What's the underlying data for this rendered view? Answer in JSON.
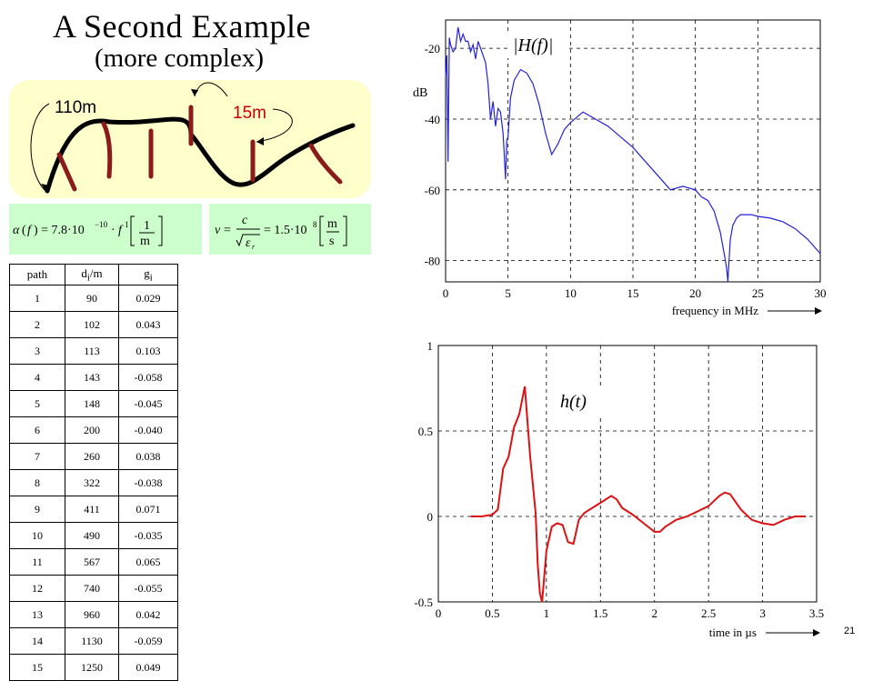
{
  "slide": {
    "title": "A Second Example",
    "subtitle": "(more complex)",
    "page_number": "21"
  },
  "topology": {
    "label_main": "110m",
    "label_branch": "15m"
  },
  "formulas": {
    "attenuation": "α(f) = 7.8·10⁻¹⁰ · f¹ [1/m]",
    "velocity": "v = c/√εr = 1.5·10⁸ [m/s]"
  },
  "table": {
    "headers": [
      "path",
      "d_i/m",
      "g_i"
    ],
    "rows": [
      [
        "1",
        "90",
        "0.029"
      ],
      [
        "2",
        "102",
        "0.043"
      ],
      [
        "3",
        "113",
        "0.103"
      ],
      [
        "4",
        "143",
        "-0.058"
      ],
      [
        "5",
        "148",
        "-0.045"
      ],
      [
        "6",
        "200",
        "-0.040"
      ],
      [
        "7",
        "260",
        "0.038"
      ],
      [
        "8",
        "322",
        "-0.038"
      ],
      [
        "9",
        "411",
        "0.071"
      ],
      [
        "10",
        "490",
        "-0.035"
      ],
      [
        "11",
        "567",
        "0.065"
      ],
      [
        "12",
        "740",
        "-0.055"
      ],
      [
        "13",
        "960",
        "0.042"
      ],
      [
        "14",
        "1130",
        "-0.059"
      ],
      [
        "15",
        "1250",
        "0.049"
      ]
    ]
  },
  "chart_data": [
    {
      "type": "line",
      "legend_text": "|H(f)|",
      "xlabel": "frequency in MHz",
      "ylabel": "dB",
      "xlim": [
        0,
        30
      ],
      "ylim": [
        -86,
        -12
      ],
      "xticks": [
        0,
        5,
        10,
        15,
        20,
        25,
        30
      ],
      "yticks": [
        -20,
        -40,
        -60,
        -80
      ],
      "grid": true,
      "color": "#2222dd",
      "x": [
        0,
        0.1,
        0.2,
        0.3,
        0.4,
        0.6,
        0.8,
        1.0,
        1.2,
        1.4,
        1.6,
        1.8,
        2.0,
        2.2,
        2.4,
        2.6,
        2.8,
        3.0,
        3.2,
        3.4,
        3.6,
        3.8,
        4.0,
        4.2,
        4.4,
        4.6,
        4.7,
        4.8,
        4.9,
        5.0,
        5.2,
        5.5,
        6.0,
        6.5,
        7.0,
        7.5,
        8.0,
        8.5,
        9.0,
        9.5,
        10.0,
        11.0,
        12.0,
        13.0,
        14.0,
        15.0,
        16.0,
        17.0,
        18.0,
        19.0,
        20.0,
        20.5,
        21.0,
        21.5,
        22.0,
        22.3,
        22.5,
        22.6,
        22.7,
        22.8,
        23.0,
        23.3,
        23.6,
        24.0,
        24.5,
        25.0,
        26.0,
        27.0,
        28.0,
        29.0,
        30.0
      ],
      "values": [
        -28,
        -22,
        -52,
        -17,
        -19,
        -21,
        -20,
        -14,
        -18,
        -16,
        -18,
        -18,
        -21,
        -19,
        -23,
        -18,
        -20,
        -22,
        -24,
        -30,
        -40,
        -35,
        -42,
        -37,
        -38,
        -44,
        -50,
        -57,
        -46,
        -45,
        -34,
        -29,
        -26,
        -27,
        -30,
        -36,
        -44,
        -50,
        -47,
        -43,
        -41,
        -38,
        -40,
        -42,
        -45,
        -48,
        -52,
        -56,
        -60,
        -59,
        -60,
        -62,
        -63,
        -66,
        -72,
        -78,
        -82,
        -86,
        -80,
        -74,
        -70,
        -68,
        -67,
        -67,
        -67,
        -67.5,
        -68,
        -69,
        -71,
        -74,
        -78
      ],
      "series": [
        {
          "name": "|H(f)|"
        }
      ]
    },
    {
      "type": "line",
      "legend_text": "h(t)",
      "xlabel": "time in µs",
      "ylabel": "",
      "xlim": [
        0,
        3.5
      ],
      "ylim": [
        -0.5,
        1
      ],
      "xticks": [
        0,
        0.5,
        1,
        1.5,
        2,
        2.5,
        3,
        3.5
      ],
      "yticks": [
        1,
        0.5,
        0,
        -0.5
      ],
      "grid": true,
      "color": "#dd1111",
      "x": [
        0.3,
        0.4,
        0.5,
        0.55,
        0.6,
        0.65,
        0.7,
        0.75,
        0.8,
        0.85,
        0.9,
        0.92,
        0.94,
        0.96,
        1.0,
        1.05,
        1.1,
        1.15,
        1.2,
        1.25,
        1.3,
        1.35,
        1.4,
        1.5,
        1.6,
        1.65,
        1.7,
        1.8,
        1.9,
        2.0,
        2.05,
        2.1,
        2.2,
        2.3,
        2.4,
        2.5,
        2.6,
        2.65,
        2.7,
        2.8,
        2.9,
        3.0,
        3.1,
        3.2,
        3.3,
        3.4
      ],
      "values": [
        0,
        0,
        0.01,
        0.04,
        0.28,
        0.35,
        0.52,
        0.6,
        0.76,
        0.35,
        0.02,
        -0.28,
        -0.45,
        -0.5,
        -0.2,
        -0.06,
        -0.04,
        -0.05,
        -0.15,
        -0.16,
        -0.02,
        0.02,
        0.04,
        0.08,
        0.12,
        0.1,
        0.05,
        0.01,
        -0.04,
        -0.09,
        -0.09,
        -0.06,
        -0.02,
        0.0,
        0.03,
        0.06,
        0.12,
        0.14,
        0.13,
        0.04,
        -0.02,
        -0.04,
        -0.05,
        -0.02,
        0.0,
        0.0
      ],
      "series": [
        {
          "name": "h(t)"
        }
      ]
    }
  ]
}
